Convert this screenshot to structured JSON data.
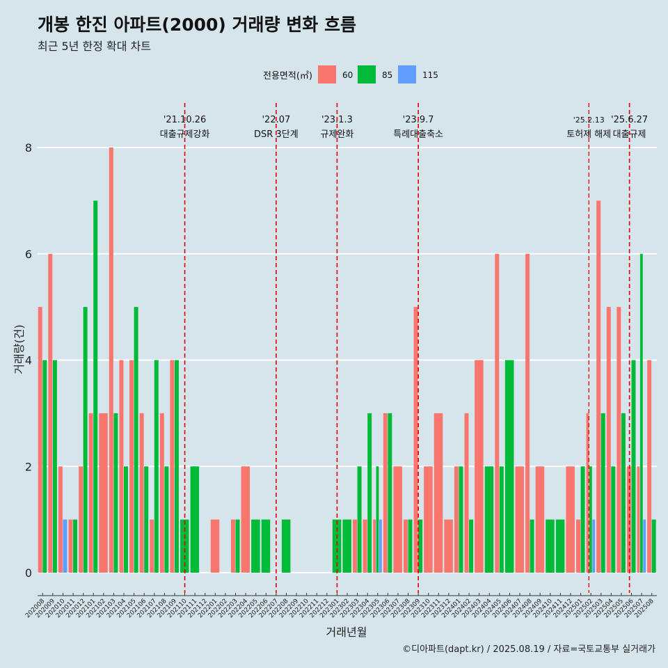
{
  "header": {
    "title": "개봉 한진 아파트(2000) 거래량 변화 흐름",
    "subtitle": "최근 5년 한정 확대 차트"
  },
  "footer": {
    "caption": "©디아파트(dapt.kr) / 2025.08.19 / 자료=국토교통부 실거래가"
  },
  "colors": {
    "background": "#d6e4ec",
    "s60": "#f8766d",
    "s85": "#00ba38",
    "s115": "#619cff",
    "event_line": "#e00000",
    "grid": "#ffffff"
  },
  "chart_data": {
    "type": "bar",
    "xlabel": "거래년월",
    "ylabel": "거래량(건)",
    "ylim": [
      0,
      8.4
    ],
    "yticks": [
      0,
      2,
      4,
      6,
      8
    ],
    "grid": true,
    "legend": {
      "title": "전용면적(㎡)",
      "position": "top"
    },
    "categories": [
      "202008",
      "202009",
      "202010",
      "202011",
      "202012",
      "202101",
      "202102",
      "202103",
      "202104",
      "202105",
      "202106",
      "202107",
      "202108",
      "202109",
      "202110",
      "202111",
      "202112",
      "202201",
      "202202",
      "202203",
      "202204",
      "202205",
      "202206",
      "202207",
      "202208",
      "202209",
      "202210",
      "202211",
      "202212",
      "202301",
      "202302",
      "202303",
      "202304",
      "202305",
      "202306",
      "202307",
      "202308",
      "202309",
      "202310",
      "202311",
      "202312",
      "202401",
      "202402",
      "202403",
      "202404",
      "202405",
      "202406",
      "202407",
      "202408",
      "202409",
      "202410",
      "202411",
      "202412",
      "202501",
      "202502",
      "202503",
      "202504",
      "202505",
      "202506",
      "202507",
      "202508"
    ],
    "series": [
      {
        "name": "60",
        "color": "#f8766d",
        "values": [
          5,
          6,
          2,
          1,
          2,
          3,
          3,
          8,
          4,
          4,
          3,
          1,
          3,
          4,
          0,
          0,
          0,
          1,
          0,
          1,
          2,
          0,
          0,
          0,
          0,
          0,
          0,
          0,
          0,
          0,
          0,
          1,
          1,
          1,
          3,
          2,
          1,
          5,
          2,
          3,
          1,
          2,
          3,
          4,
          0,
          6,
          0,
          2,
          6,
          2,
          0,
          0,
          2,
          1,
          3,
          7,
          5,
          5,
          2,
          2,
          4
        ]
      },
      {
        "name": "85",
        "color": "#00ba38",
        "values": [
          4,
          4,
          0,
          1,
          5,
          7,
          0,
          3,
          2,
          5,
          2,
          4,
          2,
          4,
          1,
          2,
          0,
          0,
          0,
          1,
          0,
          1,
          1,
          0,
          1,
          0,
          0,
          0,
          0,
          1,
          1,
          2,
          3,
          2,
          3,
          0,
          1,
          1,
          0,
          0,
          0,
          2,
          1,
          0,
          2,
          2,
          4,
          0,
          1,
          0,
          1,
          1,
          0,
          2,
          2,
          3,
          2,
          3,
          4,
          6,
          1
        ]
      },
      {
        "name": "115",
        "color": "#619cff",
        "values": [
          0,
          0,
          1,
          0,
          0,
          0,
          0,
          0,
          0,
          0,
          0,
          0,
          0,
          0,
          0,
          0,
          0,
          0,
          0,
          0,
          0,
          0,
          0,
          0,
          0,
          0,
          0,
          0,
          0,
          0,
          0,
          0,
          0,
          1,
          0,
          0,
          0,
          0,
          0,
          0,
          0,
          0,
          0,
          0,
          0,
          0,
          0,
          0,
          0,
          0,
          0,
          0,
          0,
          0,
          1,
          0,
          0,
          0,
          0,
          1,
          0
        ]
      }
    ],
    "events": [
      {
        "x": 14.5,
        "date": "'21.10.26",
        "label": "대출규제강화"
      },
      {
        "x": 23.5,
        "date": "'22.07",
        "label": "DSR 3단계"
      },
      {
        "x": 29.5,
        "date": "'23.1.3",
        "label": "규제완화"
      },
      {
        "x": 37.5,
        "date": "'23.9.7",
        "label": "특례대출축소"
      },
      {
        "x": 54.3,
        "date": "'25.2.13",
        "label": "토허제 해제"
      },
      {
        "x": 58.3,
        "date": "'25.6.27",
        "label": "대출규제"
      }
    ]
  }
}
